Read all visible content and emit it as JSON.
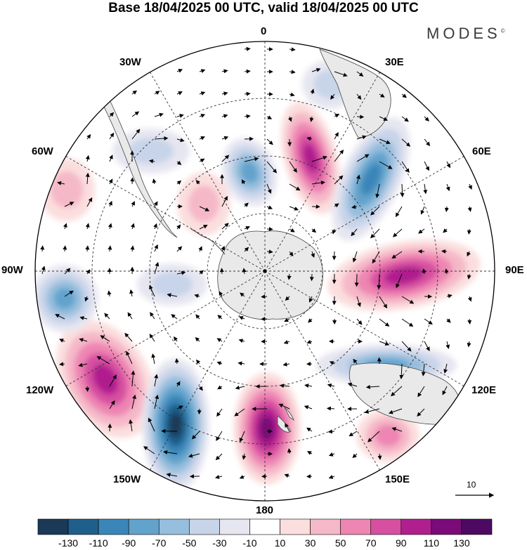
{
  "title": "Base 18/04/2025 00 UTC, valid 18/04/2025 00 UTC",
  "brand": "MODES",
  "brand_mark": "©",
  "lon_labels": {
    "l0": "0",
    "l30e": "30E",
    "l60e": "60E",
    "l90e": "90E",
    "l120e": "120E",
    "l150e": "150E",
    "l180": "180",
    "l150w": "150W",
    "l120w": "120W",
    "l90w": "90W",
    "l60w": "60W",
    "l30w": "30W"
  },
  "vector_scale_label": "10",
  "colorbar": {
    "ticks": [
      "-130",
      "-110",
      "-90",
      "-70",
      "-50",
      "-30",
      "-10",
      "10",
      "30",
      "50",
      "70",
      "90",
      "110",
      "130"
    ],
    "colors": [
      "#1b3a57",
      "#1f5f8b",
      "#3a86b8",
      "#62a3cc",
      "#96bedd",
      "#c8d4e9",
      "#e6e6f1",
      "#ffffff",
      "#fbdede",
      "#f5b8c8",
      "#ee85b2",
      "#d74fa1",
      "#b01f8e",
      "#7a0b78",
      "#4d0a63"
    ]
  },
  "anomaly_centers": [
    {
      "type": "negative",
      "level": -70
    },
    {
      "type": "positive",
      "level": 90
    },
    {
      "type": "negative",
      "level": -90
    },
    {
      "type": "positive",
      "level": 90
    },
    {
      "type": "negative",
      "level": -70
    },
    {
      "type": "positive",
      "level": 50
    },
    {
      "type": "positive",
      "level": 90
    },
    {
      "type": "negative",
      "level": -130
    },
    {
      "type": "positive",
      "level": 110
    },
    {
      "type": "negative",
      "level": -70
    },
    {
      "type": "positive",
      "level": 30
    },
    {
      "type": "positive",
      "level": 30
    },
    {
      "type": "negative",
      "level": -30
    },
    {
      "type": "negative",
      "level": -30
    },
    {
      "type": "negative",
      "level": -30
    }
  ]
}
